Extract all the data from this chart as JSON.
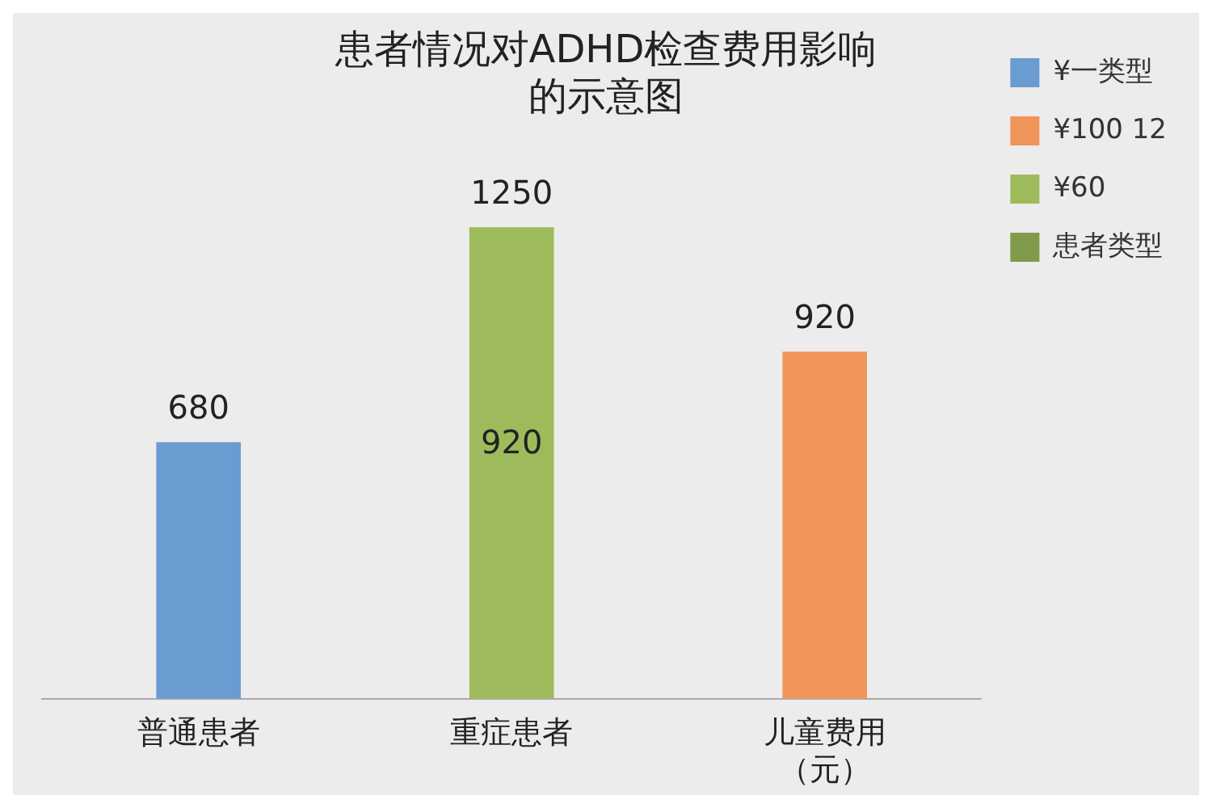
{
  "chart_data": {
    "type": "bar",
    "title": "患者情况对ADHD检查费用影响的示意图",
    "data_labels": true,
    "categories": [
      "普通患者",
      "重症患者",
      "儿童费用（元）"
    ],
    "series": [
      {
        "name": "¥一类型",
        "color": "#6a9bd1",
        "values": [
          680,
          null,
          null
        ]
      },
      {
        "name": "¥100 12",
        "color": "#f0955a",
        "values": [
          null,
          null,
          920
        ]
      },
      {
        "name": "¥60",
        "color": "#9ebb5c",
        "values": [
          null,
          1250,
          null
        ]
      },
      {
        "name": "患者类型",
        "color": "#7f9a48",
        "values": [
          null,
          null,
          null
        ]
      }
    ],
    "annotations": [
      "920"
    ],
    "legend": "right"
  }
}
